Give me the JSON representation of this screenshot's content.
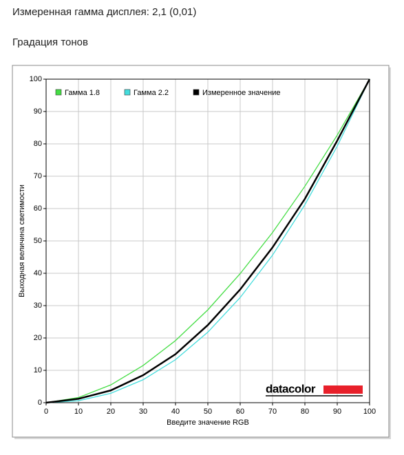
{
  "header": {
    "title": "Измеренная гамма дисплея: 2,1 (0,01)",
    "subtitle": "Градация тонов"
  },
  "logo": "datacolor",
  "chart_data": {
    "type": "line",
    "xlabel": "Введите значение RGB",
    "ylabel": "Выходная величина светимости",
    "x": [
      0,
      10,
      20,
      30,
      40,
      50,
      60,
      70,
      80,
      90,
      100
    ],
    "series": [
      {
        "name": "Гамма 1.8",
        "color": "#44dd44",
        "values": [
          0,
          1.6,
          5.5,
          11.5,
          19.2,
          28.7,
          39.9,
          52.6,
          66.9,
          82.7,
          100
        ]
      },
      {
        "name": "Гамма 2.2",
        "color": "#44dddd",
        "values": [
          0,
          0.6,
          2.9,
          7.1,
          13.3,
          21.8,
          32.5,
          45.6,
          61.2,
          79.3,
          100
        ]
      },
      {
        "name": "Измеренное значение",
        "color": "#000000",
        "values": [
          0,
          1.2,
          3.8,
          8.5,
          15,
          24,
          35,
          48,
          63,
          81,
          100
        ]
      }
    ],
    "xlim": [
      0,
      100
    ],
    "ylim": [
      0,
      100
    ],
    "xticks": [
      0,
      10,
      20,
      30,
      40,
      50,
      60,
      70,
      80,
      90,
      100
    ],
    "yticks": [
      0,
      10,
      20,
      30,
      40,
      50,
      60,
      70,
      80,
      90,
      100
    ],
    "grid": true,
    "legend": "top-left"
  }
}
